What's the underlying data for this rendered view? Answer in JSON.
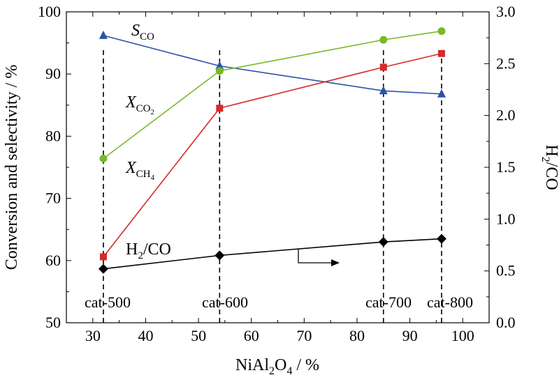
{
  "chart_data": {
    "type": "line",
    "xlabel": "NiAl2O4 / %",
    "ylabel_left": "Conversion and selectivity / %",
    "ylabel_right": "H2/CO",
    "xlim": [
      25,
      105
    ],
    "x_ticks": [
      30,
      40,
      50,
      60,
      70,
      80,
      90,
      100
    ],
    "ylim_left": [
      50,
      100
    ],
    "y_ticks_left": [
      50,
      60,
      70,
      80,
      90,
      100
    ],
    "ylim_right": [
      0.0,
      3.0
    ],
    "y_ticks_right": [
      "0.0",
      "0.5",
      "1.0",
      "1.5",
      "2.0",
      "2.5",
      "3.0"
    ],
    "grid": false,
    "x": [
      32,
      54,
      85,
      96
    ],
    "categories": [
      "cat-500",
      "cat-600",
      "cat-700",
      "cat-800"
    ],
    "series": [
      {
        "name": "S_CO",
        "label_main": "S",
        "label_sub": "CO",
        "axis": "left",
        "color": "#2a52a8",
        "marker": "triangle",
        "values": [
          96.2,
          91.3,
          87.3,
          86.8
        ]
      },
      {
        "name": "X_CO2",
        "label_main": "X",
        "label_sub": "CO",
        "label_subsub": "2",
        "axis": "left",
        "color": "#7ab828",
        "marker": "circle",
        "values": [
          76.4,
          90.5,
          95.5,
          96.9
        ]
      },
      {
        "name": "X_CH4",
        "label_main": "X",
        "label_sub": "CH",
        "label_subsub": "4",
        "axis": "left",
        "color": "#d42a2a",
        "marker": "square",
        "values": [
          60.6,
          84.5,
          91.1,
          93.3
        ]
      },
      {
        "name": "H2/CO",
        "label_parts": [
          "H",
          "2",
          "/CO"
        ],
        "axis": "right",
        "color": "#000000",
        "marker": "diamond",
        "values": [
          0.52,
          0.65,
          0.78,
          0.81
        ]
      }
    ],
    "xlabel_parts": [
      "NiAl",
      "2",
      "O",
      "4",
      " / %"
    ],
    "ylabel_right_parts": [
      "H",
      "2",
      "/CO"
    ]
  }
}
